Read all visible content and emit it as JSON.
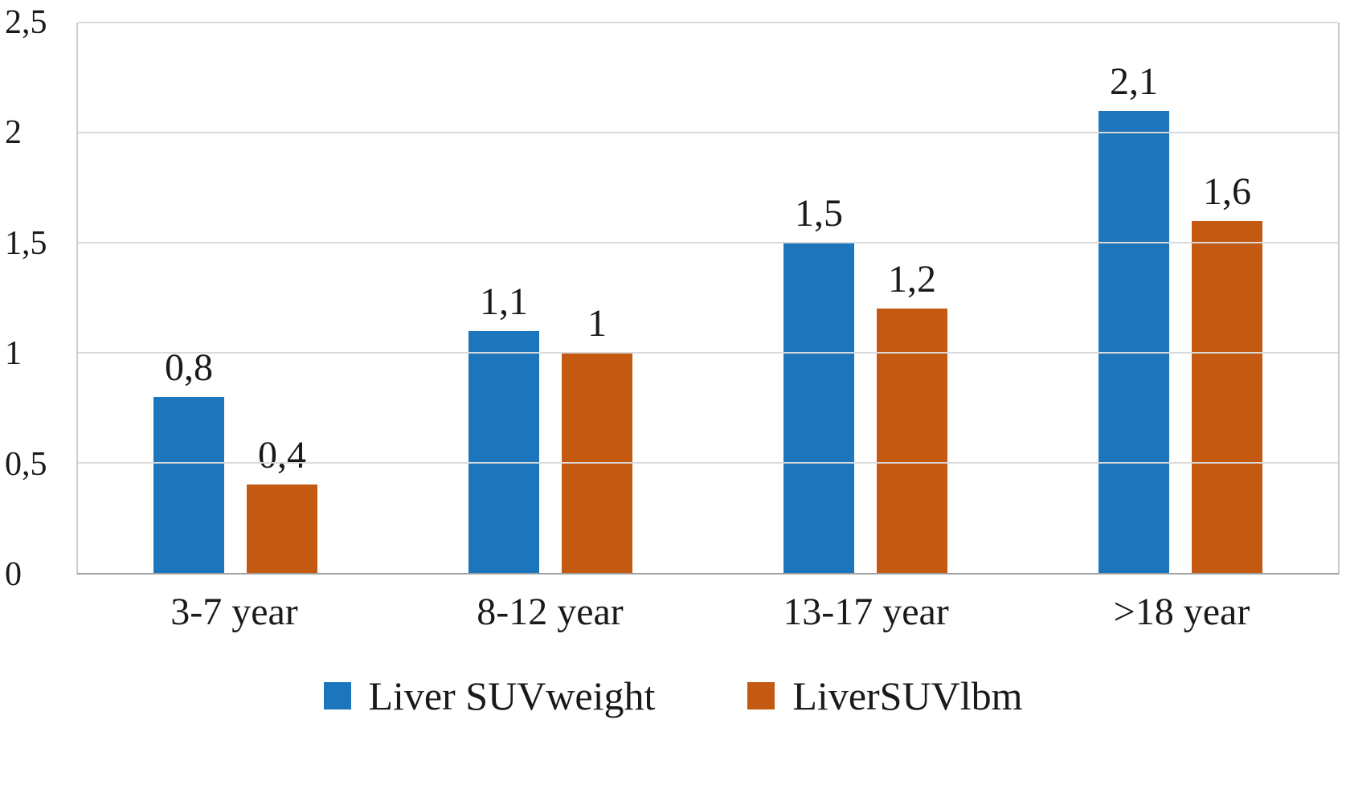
{
  "colors": {
    "blue": "#1d76bb",
    "orange": "#c45911",
    "gridline": "#d9d9d9",
    "axis": "#9f9f9f",
    "text": "#1a1a1a"
  },
  "chart_data": {
    "type": "bar",
    "title": "",
    "xlabel": "",
    "ylabel": "",
    "grid": true,
    "legend_position": "bottom",
    "categories": [
      "3-7 year",
      "8-12 year",
      "13-17 year",
      ">18 year"
    ],
    "series": [
      {
        "name": "Liver SUVweight",
        "color_key": "blue",
        "values": [
          0.8,
          1.1,
          1.5,
          2.1
        ],
        "labels": [
          "0,8",
          "1,1",
          "1,5",
          "2,1"
        ]
      },
      {
        "name": "LiverSUVlbm",
        "color_key": "orange",
        "values": [
          0.4,
          1.0,
          1.2,
          1.6
        ],
        "labels": [
          "0,4",
          "1",
          "1,2",
          "1,6"
        ]
      }
    ],
    "y_axis": {
      "min": 0,
      "max": 2.5,
      "step": 0.5,
      "tick_labels": [
        "0",
        "0,5",
        "1",
        "1,5",
        "2",
        "2,5"
      ]
    }
  }
}
